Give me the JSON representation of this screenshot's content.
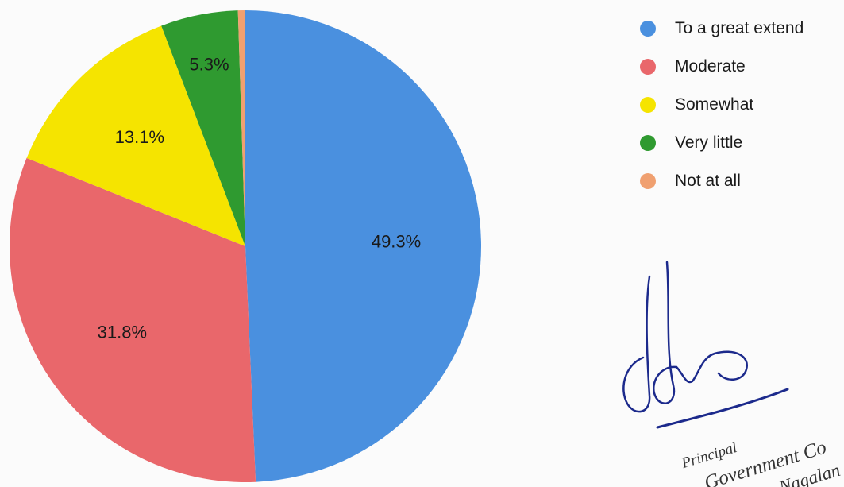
{
  "chart_data": {
    "type": "pie",
    "title": "",
    "start_angle_deg": 0,
    "direction": "clockwise",
    "legend_position": "right",
    "slices": [
      {
        "label": "To a great extend",
        "value": 49.3,
        "display": "49.3%",
        "color": "#4a90df"
      },
      {
        "label": "Moderate",
        "value": 31.8,
        "display": "31.8%",
        "color": "#e9676b"
      },
      {
        "label": "Somewhat",
        "value": 13.1,
        "display": "13.1%",
        "color": "#f5e400"
      },
      {
        "label": "Very little",
        "value": 5.3,
        "display": "5.3%",
        "color": "#2f9a30"
      },
      {
        "label": "Not at all",
        "value": 0.5,
        "display": "",
        "color": "#f0a070"
      }
    ]
  },
  "stamp": {
    "line1": "Principal",
    "line2": "Government Co",
    "line3": "Nagalan"
  }
}
